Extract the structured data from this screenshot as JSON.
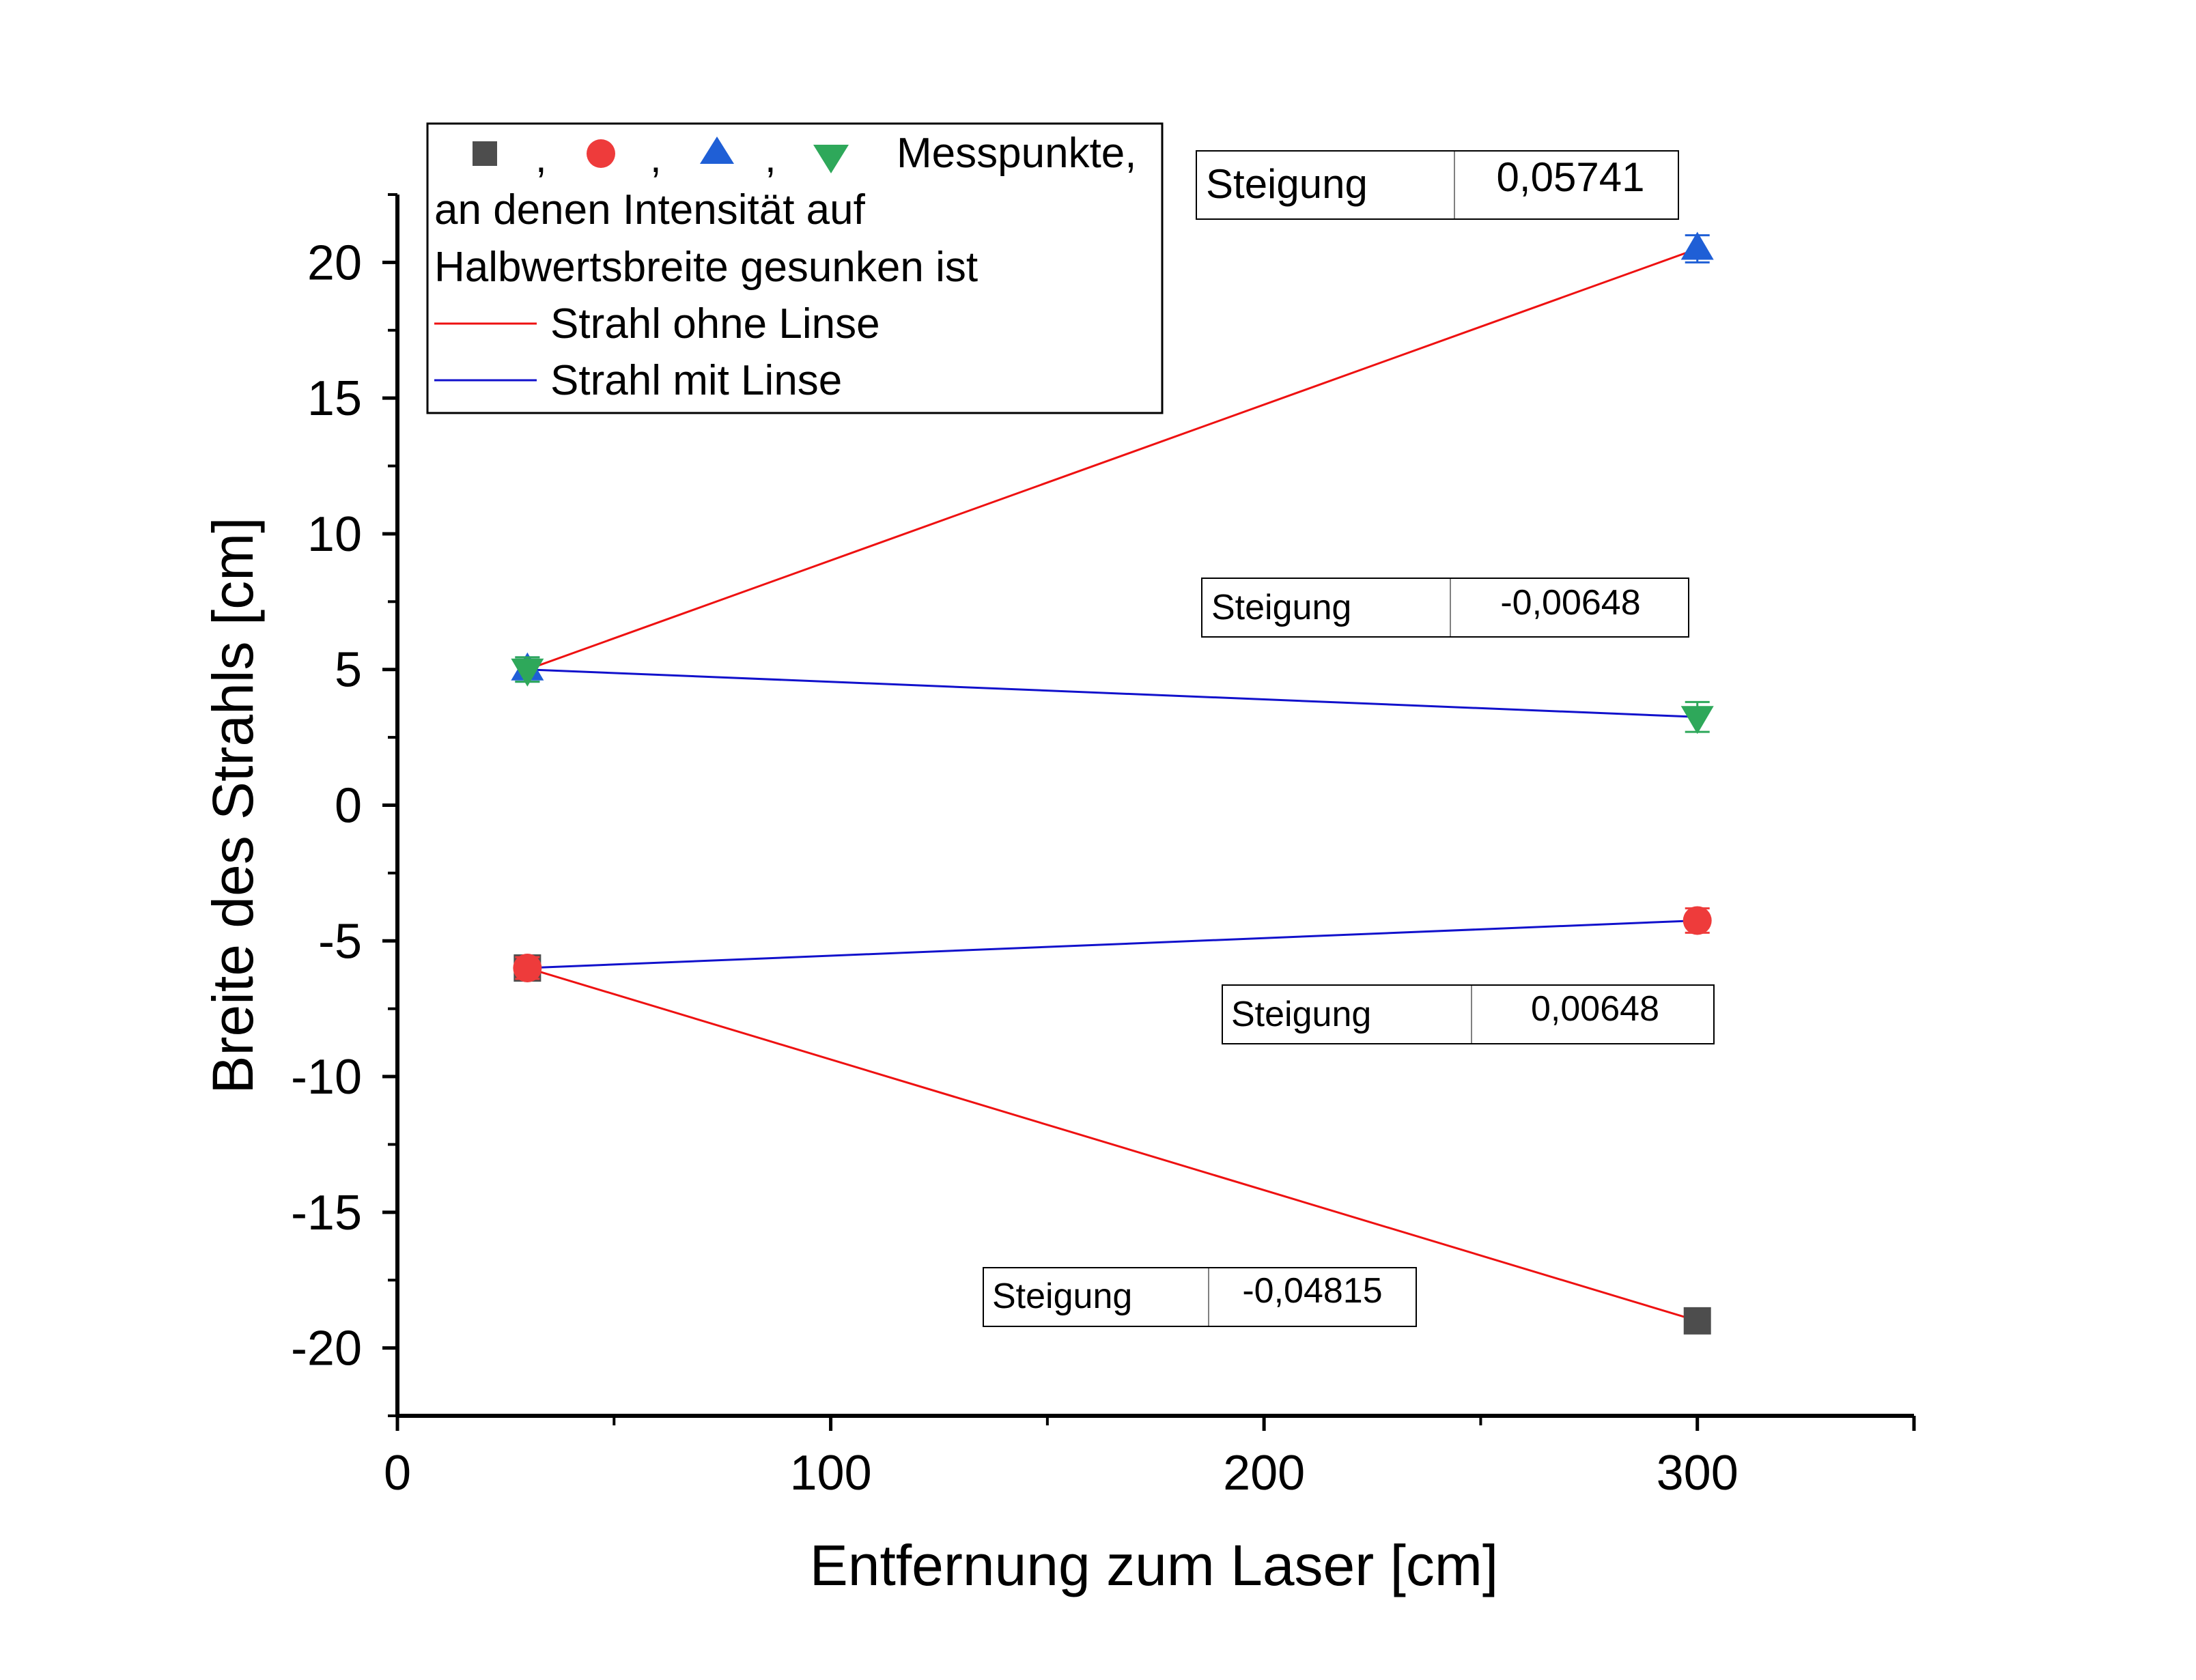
{
  "chart_data": {
    "type": "scatter",
    "xlabel": "Entfernung zum Laser [cm]",
    "ylabel": "Breite des Strahls [cm]",
    "xlim": [
      0,
      350
    ],
    "ylim": [
      -22.5,
      22.5
    ],
    "x_ticks": [
      0,
      100,
      200,
      300
    ],
    "y_ticks": [
      20,
      15,
      10,
      5,
      0,
      -5,
      -10,
      -15,
      -20
    ],
    "x_tick_labels": [
      "0",
      "100",
      "200",
      "300"
    ],
    "y_tick_labels": [
      "20",
      "15",
      "10",
      "5",
      "0",
      "-5",
      "-10",
      "-15",
      "-20"
    ],
    "grid": false,
    "legend_position": "top-left",
    "legend": {
      "marker_separator": ",",
      "marker_line": "Messpunkte,",
      "line2": "an denen Intensität auf",
      "line3": "Halbwertsbreite gesunken ist",
      "fit_red_label": "Strahl ohne Linse",
      "fit_blue_label": "Strahl mit Linse"
    },
    "colors": {
      "square": "#4d4d4d",
      "circle": "#ee3b3b",
      "triangle_up": "#1f5fd6",
      "triangle_down": "#2ea85a",
      "fit_red": "#ee1111",
      "fit_blue": "#1111cc"
    },
    "series": [
      {
        "marker": "square",
        "points": [
          [
            30,
            -6.0
          ],
          [
            300,
            -19.0
          ]
        ],
        "yerr": [
          0.4,
          0.4
        ]
      },
      {
        "marker": "circle",
        "points": [
          [
            30,
            -6.0
          ],
          [
            300,
            -4.25
          ]
        ],
        "yerr": [
          0.4,
          0.45
        ]
      },
      {
        "marker": "triangle_up",
        "points": [
          [
            30,
            5.0
          ],
          [
            300,
            20.5
          ]
        ],
        "yerr": [
          0.45,
          0.5
        ]
      },
      {
        "marker": "triangle_down",
        "points": [
          [
            30,
            5.0
          ],
          [
            300,
            3.25
          ]
        ],
        "yerr": [
          0.45,
          0.55
        ]
      }
    ],
    "fits": [
      {
        "color": "fit_red",
        "from": [
          30,
          5.0
        ],
        "to": [
          300,
          20.5
        ]
      },
      {
        "color": "fit_blue",
        "from": [
          30,
          5.0
        ],
        "to": [
          300,
          3.25
        ]
      },
      {
        "color": "fit_blue",
        "from": [
          30,
          -6.0
        ],
        "to": [
          300,
          -4.25
        ]
      },
      {
        "color": "fit_red",
        "from": [
          30,
          -6.0
        ],
        "to": [
          300,
          -19.0
        ]
      }
    ],
    "annotations": [
      {
        "label": "Steigung",
        "value": "0,05741"
      },
      {
        "label": "Steigung",
        "value": "-0,00648"
      },
      {
        "label": "Steigung",
        "value": "0,00648"
      },
      {
        "label": "Steigung",
        "value": "-0,04815"
      }
    ]
  }
}
